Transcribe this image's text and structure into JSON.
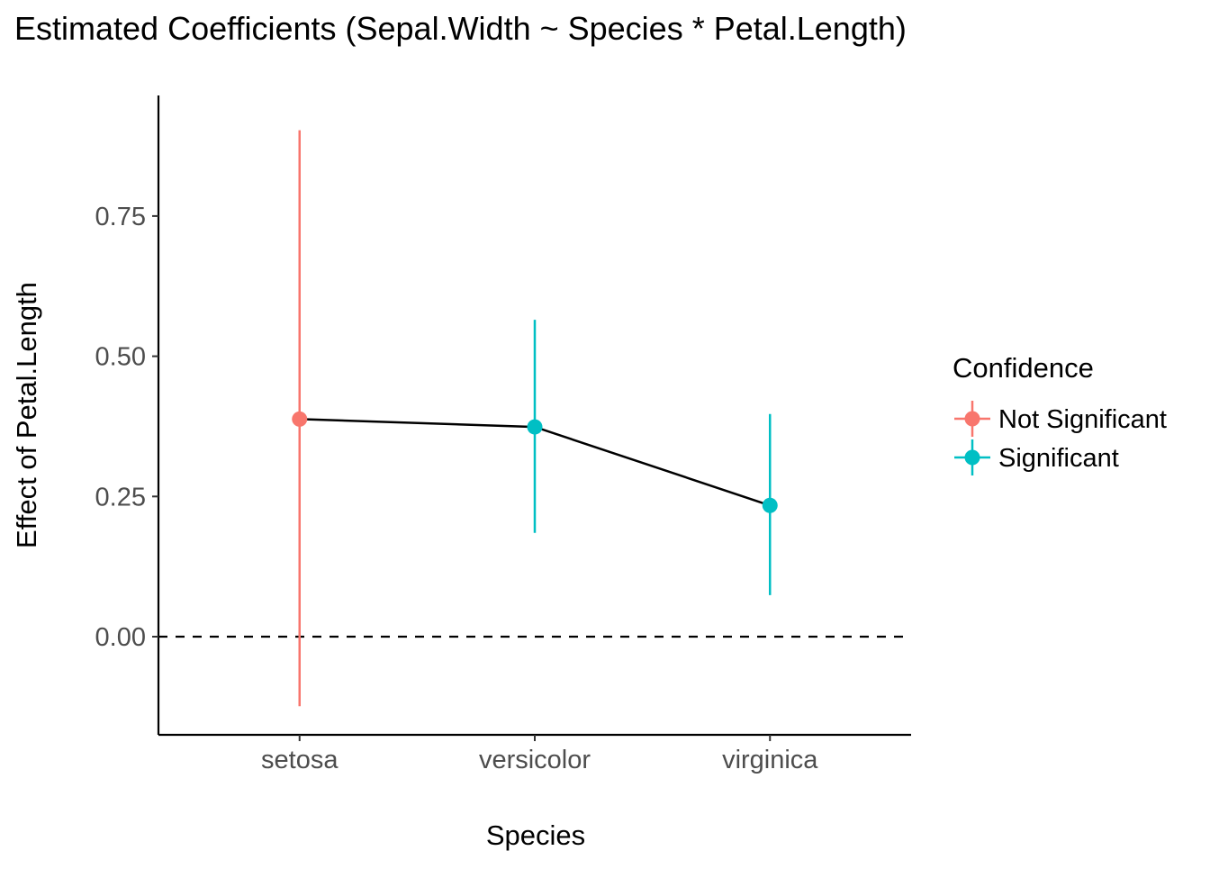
{
  "chart_data": {
    "type": "scatter",
    "title": "Estimated Coefficients (Sepal.Width ~ Species * Petal.Length)",
    "xlabel": "Species",
    "ylabel": "Effect of Petal.Length",
    "categories": [
      "setosa",
      "versicolor",
      "virginica"
    ],
    "ylim": [
      -0.175,
      0.965
    ],
    "yticks": [
      0.0,
      0.25,
      0.5,
      0.75
    ],
    "ytick_labels": [
      "0.00",
      "0.25",
      "0.50",
      "0.75"
    ],
    "reference_line": {
      "y": 0,
      "style": "dashed"
    },
    "connect_points": true,
    "points": [
      {
        "category": "setosa",
        "estimate": 0.388,
        "lower": -0.124,
        "upper": 0.903,
        "confidence": "Not Significant"
      },
      {
        "category": "versicolor",
        "estimate": 0.374,
        "lower": 0.185,
        "upper": 0.565,
        "confidence": "Significant"
      },
      {
        "category": "virginica",
        "estimate": 0.234,
        "lower": 0.074,
        "upper": 0.397,
        "confidence": "Significant"
      }
    ],
    "legend": {
      "title": "Confidence",
      "placement": "right",
      "entries": [
        {
          "label": "Not Significant",
          "color": "#f8766d"
        },
        {
          "label": "Significant",
          "color": "#00bfc4"
        }
      ]
    },
    "grid": false
  }
}
